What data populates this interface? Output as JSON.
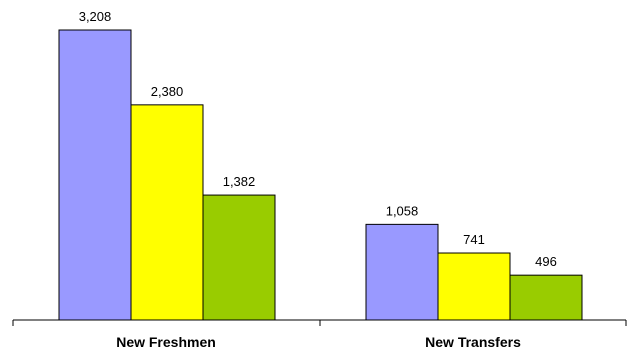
{
  "chart_data": {
    "type": "bar",
    "categories": [
      "New Freshmen",
      "New Transfers"
    ],
    "series": [
      {
        "values": [
          3208,
          1058
        ],
        "color": "#9999ff"
      },
      {
        "values": [
          2380,
          741
        ],
        "color": "#ffff00"
      },
      {
        "values": [
          1382,
          496
        ],
        "color": "#99cc00"
      }
    ],
    "value_labels": [
      [
        "3,208",
        "1,058"
      ],
      [
        "2,380",
        "741"
      ],
      [
        "1,382",
        "496"
      ]
    ],
    "ylim": [
      0,
      3300
    ],
    "grid": false,
    "legend": "none"
  }
}
